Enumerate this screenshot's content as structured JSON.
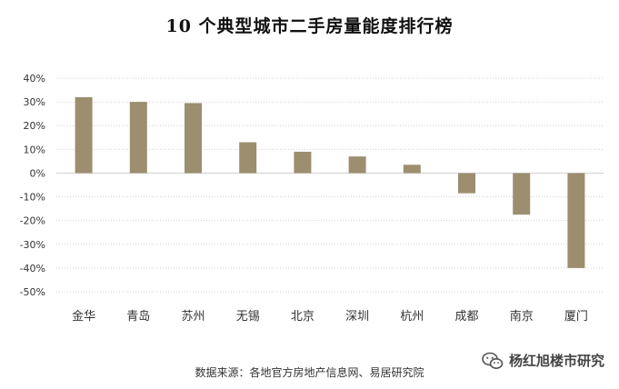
{
  "chart_data": {
    "type": "bar",
    "title": "10 个典型城市二手房量能度排行榜",
    "categories": [
      "金华",
      "青岛",
      "苏州",
      "无锡",
      "北京",
      "深圳",
      "杭州",
      "成都",
      "南京",
      "厦门"
    ],
    "values": [
      32,
      30,
      29.5,
      13,
      9,
      7,
      3.5,
      -8.5,
      -17.5,
      -40
    ],
    "ylim": [
      -50,
      40
    ],
    "yticks": [
      "40%",
      "30%",
      "20%",
      "10%",
      "0%",
      "-10%",
      "-20%",
      "-30%",
      "-40%",
      "-50%"
    ],
    "ytick_values": [
      40,
      30,
      20,
      10,
      0,
      -10,
      -20,
      -30,
      -40,
      -50
    ],
    "grid": true,
    "xlabel": "",
    "ylabel": ""
  },
  "colors": {
    "bar": "#9C8E6F",
    "grid": "#D0D0D0",
    "axis_text": "#333333"
  },
  "source": "数据来源：各地官方房地产信息网、易居研究院",
  "watermark": {
    "text": "杨红旭楼市研究",
    "icon": "wechat-icon"
  }
}
